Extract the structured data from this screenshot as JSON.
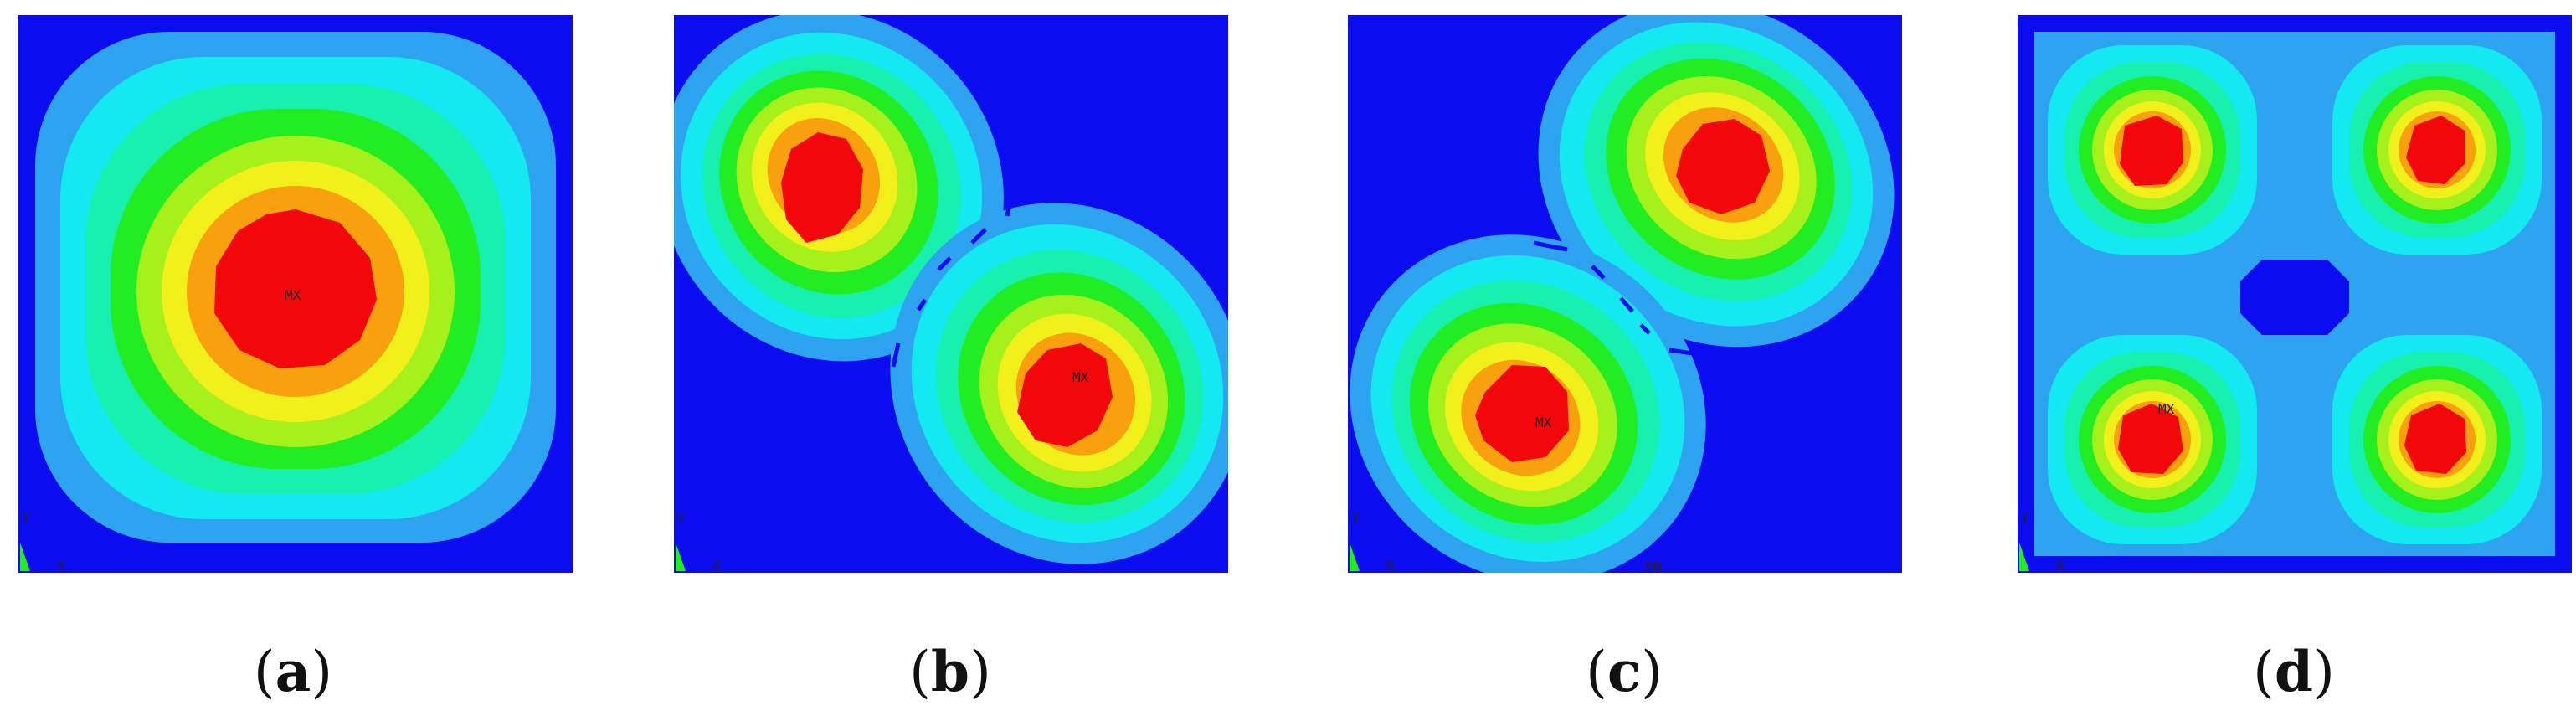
{
  "panels": [
    {
      "id": "a",
      "caption": "(a)",
      "letter": "a",
      "max_label": "MX",
      "axis_label_y": "Y",
      "axis_label_x": "X"
    },
    {
      "id": "b",
      "caption": "(b)",
      "letter": "b",
      "max_label": "MX",
      "axis_label_y": "Y",
      "axis_label_x": "X"
    },
    {
      "id": "c",
      "caption": "(c)",
      "letter": "c",
      "max_label": "MX",
      "min_label": "MN",
      "axis_label_y": "Y",
      "axis_label_x": "X"
    },
    {
      "id": "d",
      "caption": "(d)",
      "letter": "d",
      "max_label": "MX",
      "axis_label_y": "Y",
      "axis_label_x": "X"
    }
  ],
  "colors": {
    "background": "#0c0cf0",
    "light_blue": "#2ea4f0",
    "cyan": "#14e8f0",
    "aqua_green": "#18f0b0",
    "green": "#22ec22",
    "yellow_green": "#a6f01c",
    "yellow": "#f2f01a",
    "orange": "#f8a00e",
    "red": "#f2080a"
  }
}
